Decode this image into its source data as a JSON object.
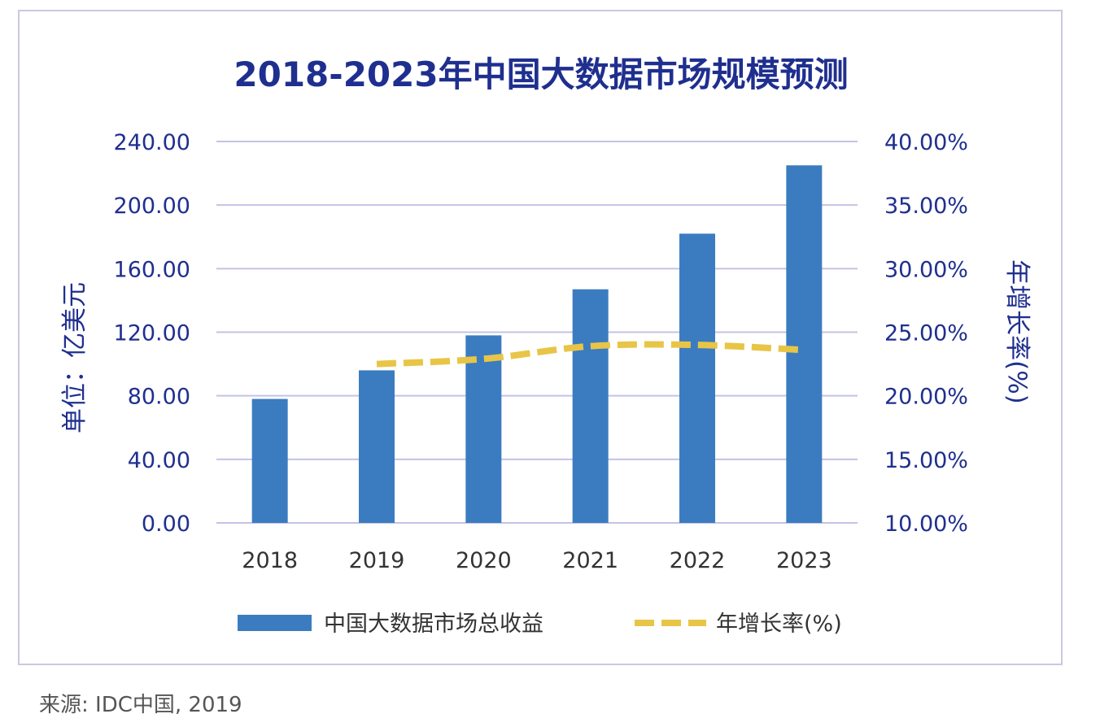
{
  "chart_data": {
    "type": "bar",
    "title": "2018-2023年中国大数据市场规模预测",
    "categories": [
      "2018",
      "2019",
      "2020",
      "2021",
      "2022",
      "2023"
    ],
    "series": [
      {
        "name": "中国大数据市场总收益",
        "type": "bar",
        "axis": "left",
        "color": "#3b7cc0",
        "values": [
          78.0,
          96.0,
          118.0,
          147.0,
          182.0,
          225.0
        ]
      },
      {
        "name": "年增长率(%)",
        "type": "line",
        "style": "dashed",
        "axis": "right",
        "color": "#e8c547",
        "values": [
          null,
          0.225,
          0.229,
          0.239,
          0.24,
          0.236
        ]
      }
    ],
    "ylabel": "单位：亿美元",
    "ylabel_right": "年增长率(%)",
    "ylim": [
      0,
      240
    ],
    "ylim_right": [
      0.1,
      0.4
    ],
    "yticks": [
      "0.00",
      "40.00",
      "80.00",
      "120.00",
      "160.00",
      "200.00",
      "240.00"
    ],
    "yticks_right": [
      "10.00%",
      "15.00%",
      "20.00%",
      "25.00%",
      "30.00%",
      "35.00%",
      "40.00%"
    ],
    "grid": true,
    "legend": "bottom-center"
  },
  "source": "来源: IDC中国, 2019"
}
